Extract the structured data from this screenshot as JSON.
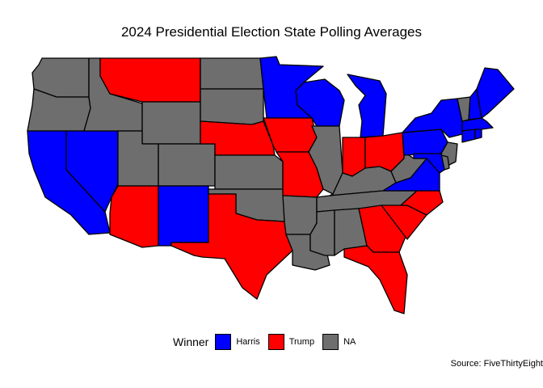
{
  "title": "2024 Presidential Election State Polling Averages",
  "legend": {
    "title": "Winner",
    "items": [
      {
        "label": "Harris",
        "color": "#0000ff"
      },
      {
        "label": "Trump",
        "color": "#ff0000"
      },
      {
        "label": "NA",
        "color": "#6e6e6e"
      }
    ]
  },
  "source": "Source: FiveThirtyEight",
  "states": [
    {
      "name": "Washington",
      "winner": "NA"
    },
    {
      "name": "Oregon",
      "winner": "NA"
    },
    {
      "name": "California",
      "winner": "Harris"
    },
    {
      "name": "Nevada",
      "winner": "Harris"
    },
    {
      "name": "Idaho",
      "winner": "NA"
    },
    {
      "name": "Montana",
      "winner": "Trump"
    },
    {
      "name": "Wyoming",
      "winner": "NA"
    },
    {
      "name": "Utah",
      "winner": "NA"
    },
    {
      "name": "Arizona",
      "winner": "Trump"
    },
    {
      "name": "Colorado",
      "winner": "NA"
    },
    {
      "name": "New Mexico",
      "winner": "Harris"
    },
    {
      "name": "North Dakota",
      "winner": "NA"
    },
    {
      "name": "South Dakota",
      "winner": "NA"
    },
    {
      "name": "Nebraska",
      "winner": "Trump"
    },
    {
      "name": "Kansas",
      "winner": "NA"
    },
    {
      "name": "Oklahoma",
      "winner": "NA"
    },
    {
      "name": "Texas",
      "winner": "Trump"
    },
    {
      "name": "Minnesota",
      "winner": "Harris"
    },
    {
      "name": "Iowa",
      "winner": "Trump"
    },
    {
      "name": "Missouri",
      "winner": "Trump"
    },
    {
      "name": "Arkansas",
      "winner": "NA"
    },
    {
      "name": "Louisiana",
      "winner": "NA"
    },
    {
      "name": "Wisconsin",
      "winner": "Harris"
    },
    {
      "name": "Illinois",
      "winner": "NA"
    },
    {
      "name": "Michigan",
      "winner": "Harris"
    },
    {
      "name": "Indiana",
      "winner": "Trump"
    },
    {
      "name": "Ohio",
      "winner": "Trump"
    },
    {
      "name": "Kentucky",
      "winner": "NA"
    },
    {
      "name": "Tennessee",
      "winner": "NA"
    },
    {
      "name": "Mississippi",
      "winner": "NA"
    },
    {
      "name": "Alabama",
      "winner": "NA"
    },
    {
      "name": "Georgia",
      "winner": "Trump"
    },
    {
      "name": "Florida",
      "winner": "Trump"
    },
    {
      "name": "South Carolina",
      "winner": "Trump"
    },
    {
      "name": "North Carolina",
      "winner": "Trump"
    },
    {
      "name": "Virginia",
      "winner": "Harris"
    },
    {
      "name": "West Virginia",
      "winner": "NA"
    },
    {
      "name": "Pennsylvania",
      "winner": "Harris"
    },
    {
      "name": "New York",
      "winner": "Harris"
    },
    {
      "name": "Vermont",
      "winner": "NA"
    },
    {
      "name": "New Hampshire",
      "winner": "Harris"
    },
    {
      "name": "Maine",
      "winner": "Harris"
    },
    {
      "name": "Massachusetts",
      "winner": "Harris"
    },
    {
      "name": "Connecticut",
      "winner": "Harris"
    },
    {
      "name": "Rhode Island",
      "winner": "Harris"
    },
    {
      "name": "New Jersey",
      "winner": "NA"
    },
    {
      "name": "Delaware",
      "winner": "NA"
    },
    {
      "name": "Maryland",
      "winner": "Harris"
    }
  ]
}
